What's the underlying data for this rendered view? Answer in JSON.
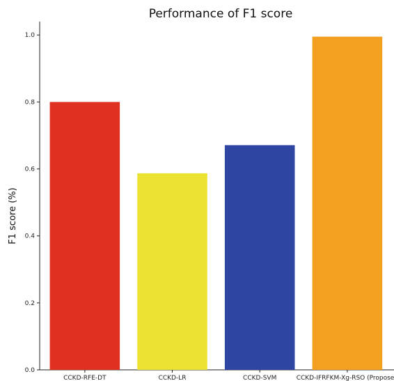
{
  "chart_data": {
    "type": "bar",
    "title": "Performance of F1 score",
    "xlabel": "",
    "ylabel": "F1 score (%)",
    "categories": [
      "CCKD-RFE-DT",
      "CCKD-LR",
      "CCKD-SVM",
      "CCKD-IFRFKM-Xg-RSO (Proposed"
    ],
    "values": [
      0.8,
      0.587,
      0.671,
      0.995
    ],
    "colors": [
      "#e03022",
      "#ebe232",
      "#2f45a2",
      "#f3a020"
    ],
    "ylim": [
      0,
      1.04
    ],
    "yticks": [
      "0.0",
      "0.2",
      "0.4",
      "0.6",
      "0.8",
      "1.0"
    ],
    "grid": false,
    "legend": "none"
  }
}
